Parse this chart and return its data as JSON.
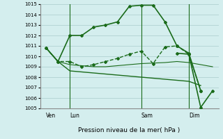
{
  "title": "Pression niveau de la mer( hPa )",
  "bg_color": "#d4eeee",
  "grid_color": "#aacccc",
  "line_color": "#1a6b1a",
  "ylim": [
    1005,
    1015
  ],
  "yticks": [
    1005,
    1006,
    1007,
    1008,
    1009,
    1010,
    1011,
    1012,
    1013,
    1014,
    1015
  ],
  "day_labels": [
    "Ven",
    "Lun",
    "Sam",
    "Dim"
  ],
  "day_positions": [
    0,
    2,
    8,
    12
  ],
  "vline_positions": [
    2,
    8,
    12
  ],
  "line1": {
    "x": [
      0,
      1,
      2,
      3,
      4,
      5,
      6,
      7,
      8,
      9,
      10,
      11,
      12,
      13
    ],
    "y": [
      1010.8,
      1009.5,
      1012.0,
      1012.0,
      1012.8,
      1013.0,
      1013.3,
      1014.8,
      1014.9,
      1014.9,
      1013.3,
      1011.0,
      1010.3,
      1006.7
    ]
  },
  "line2_dashed": {
    "x": [
      0,
      1,
      2,
      3,
      4,
      5,
      6,
      7,
      8,
      9,
      10,
      11,
      12,
      13
    ],
    "y": [
      1010.8,
      1009.5,
      1009.5,
      1009.0,
      1009.2,
      1009.5,
      1009.8,
      1010.2,
      1010.5,
      1009.3,
      1010.9,
      1011.0,
      1010.2,
      1006.7
    ]
  },
  "line3_flat": {
    "x": [
      0,
      1,
      2,
      3,
      4,
      5,
      6,
      7,
      8,
      9,
      10,
      11,
      12,
      13
    ],
    "y": [
      1010.8,
      1009.5,
      1008.6,
      1008.5,
      1008.4,
      1008.3,
      1008.2,
      1008.1,
      1008.0,
      1007.9,
      1007.8,
      1007.7,
      1007.6,
      1007.2
    ]
  },
  "line4_flat2": {
    "x": [
      0,
      1,
      2,
      3,
      4,
      5,
      6,
      7,
      8,
      9,
      10,
      11,
      12,
      13,
      14
    ],
    "y": [
      1010.8,
      1009.5,
      1009.2,
      1009.1,
      1009.0,
      1009.0,
      1009.1,
      1009.2,
      1009.3,
      1009.35,
      1009.4,
      1009.5,
      1009.4,
      1009.2,
      1009.0
    ]
  },
  "line5_low": {
    "x": [
      11,
      12,
      13,
      14
    ],
    "y": [
      1010.3,
      1010.2,
      1005.1,
      1006.7
    ]
  }
}
